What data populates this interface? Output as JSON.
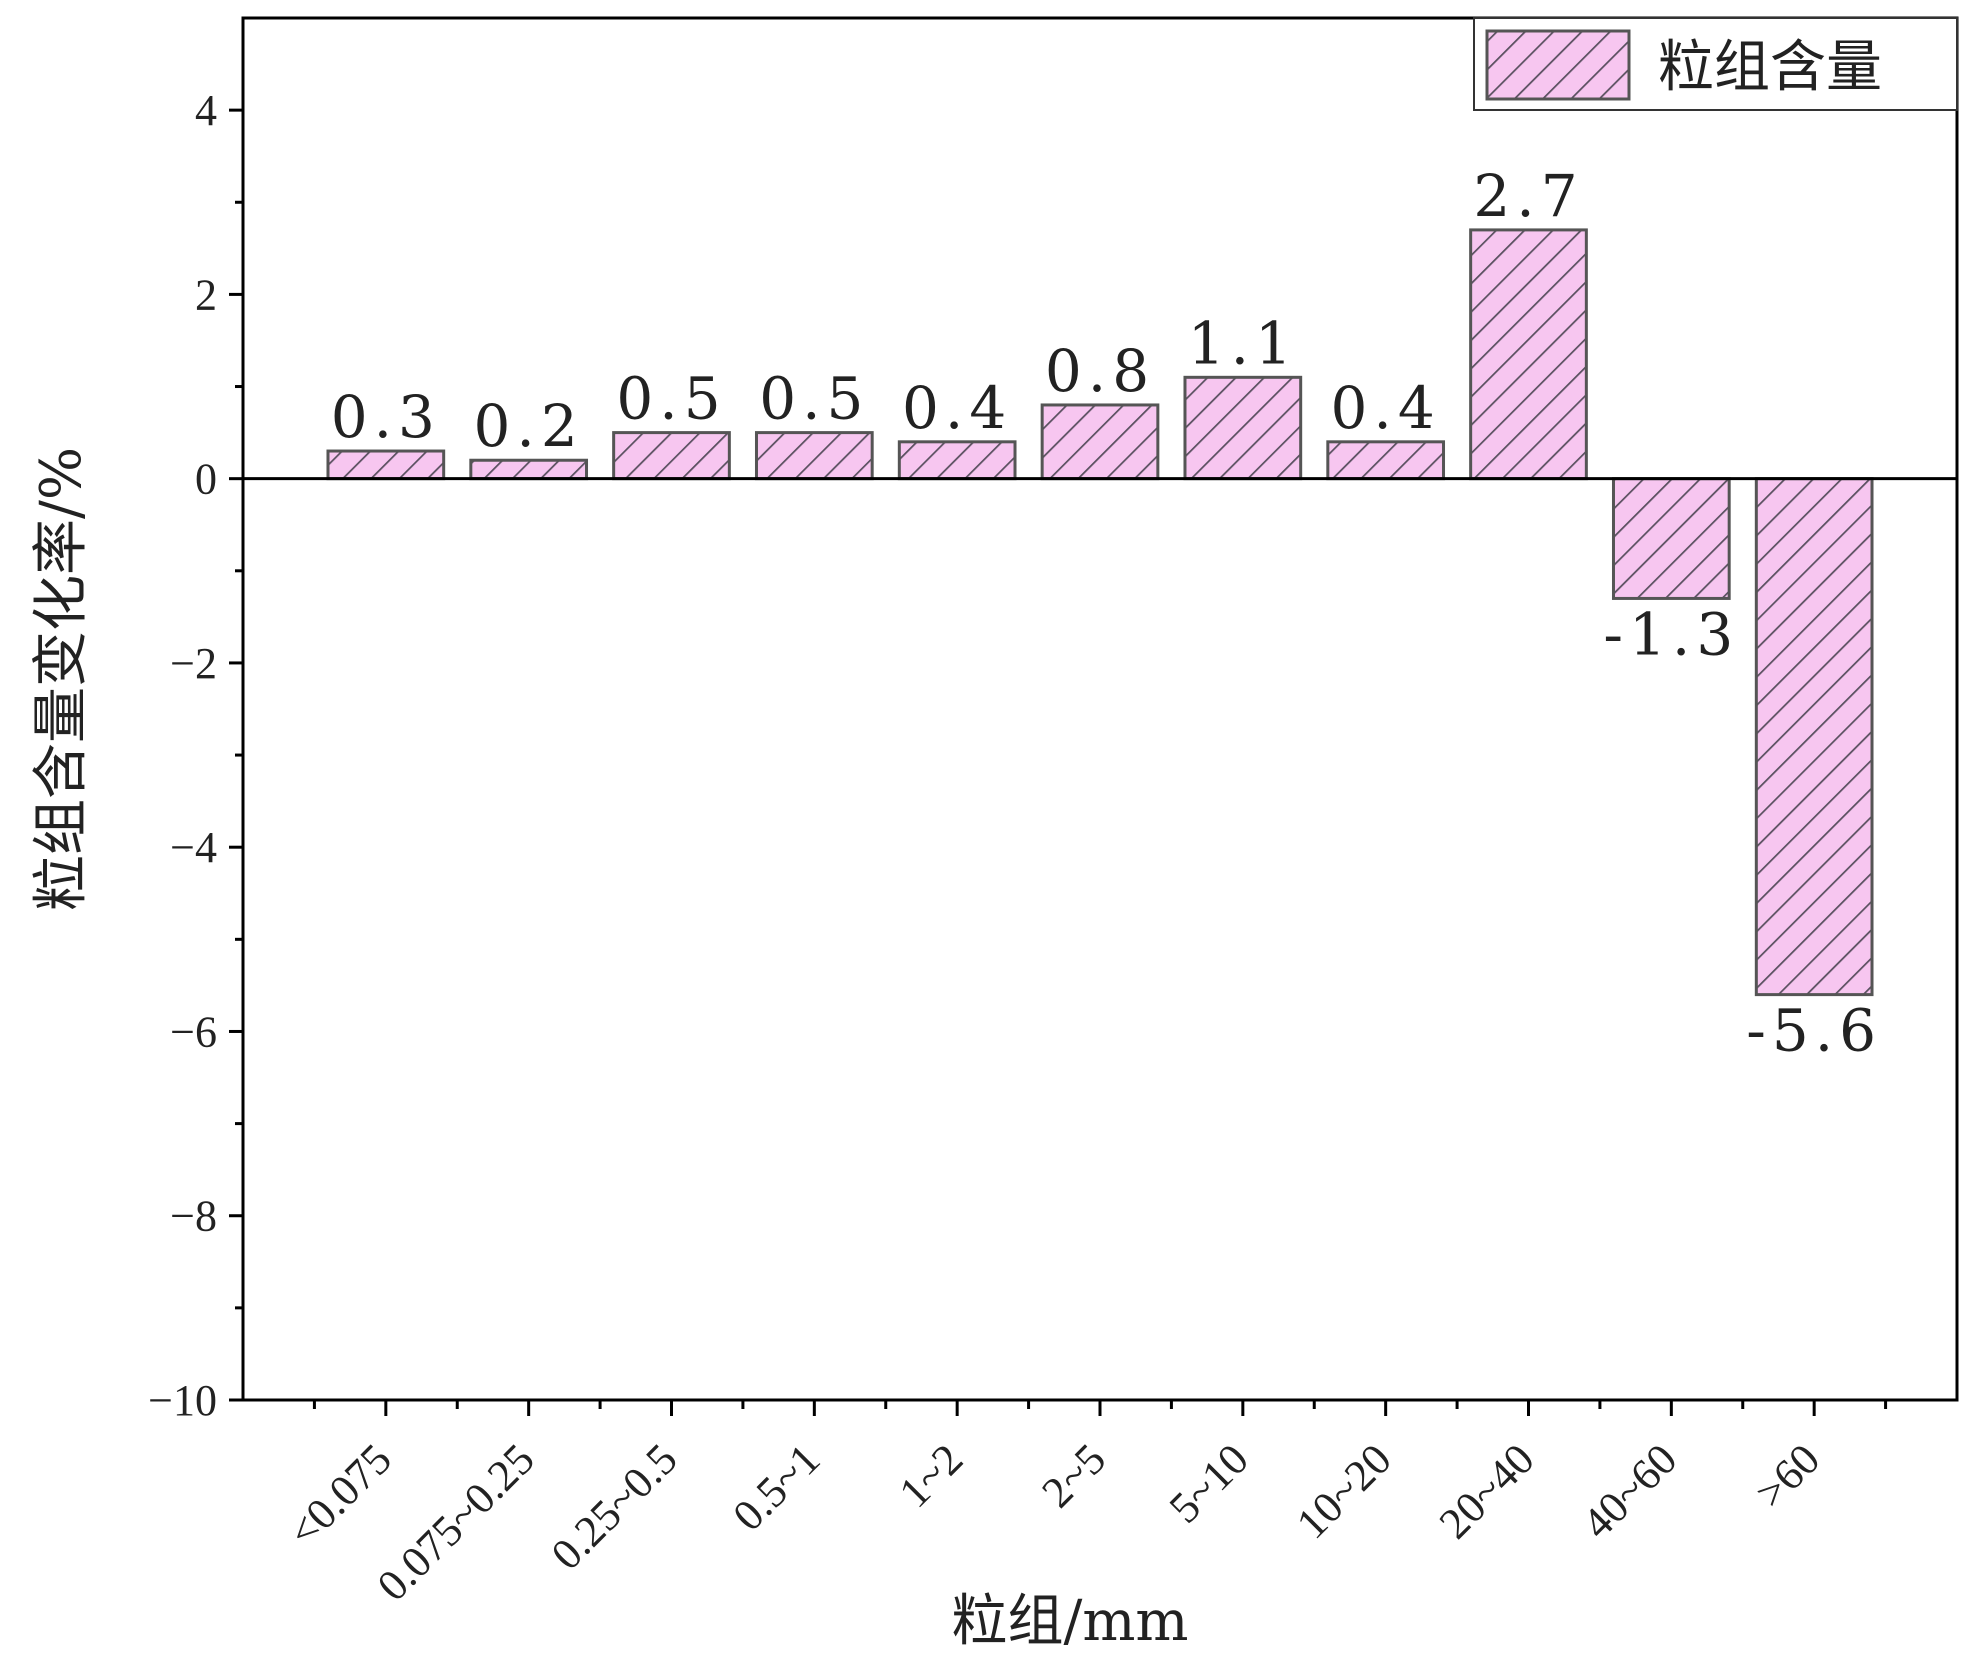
{
  "chart_data": {
    "type": "bar",
    "categories": [
      "<0.075",
      "0.075~0.25",
      "0.25~0.5",
      "0.5~1",
      "1~2",
      "2~5",
      "5~10",
      "10~20",
      "20~40",
      "40~60",
      ">60"
    ],
    "series": [
      {
        "name": "粒组含量",
        "values": [
          0.3,
          0.2,
          0.5,
          0.5,
          0.4,
          0.8,
          1.1,
          0.4,
          2.7,
          -1.3,
          -5.6
        ]
      }
    ],
    "data_labels": [
      "0.3",
      "0.2",
      "0.5",
      "0.5",
      "0.4",
      "0.8",
      "1.1",
      "0.4",
      "2.7",
      "-1.3",
      "-5.6"
    ],
    "xlabel": "粒组/mm",
    "ylabel": "粒组含量变化率/%",
    "ylim": [
      -10,
      5
    ],
    "yticks": [
      4,
      2,
      0,
      -2,
      -4,
      -6,
      -8,
      -10
    ],
    "ytick_labels": [
      "4",
      "2",
      "0",
      "−2",
      "−4",
      "−6",
      "−8",
      "−10"
    ],
    "grid": false,
    "legend": "top-right",
    "colors": {
      "bar_fill": "#f7c6f0",
      "bar_hatch": "#5a5060",
      "bar_edge": "#555555",
      "axis": "#000000"
    }
  }
}
